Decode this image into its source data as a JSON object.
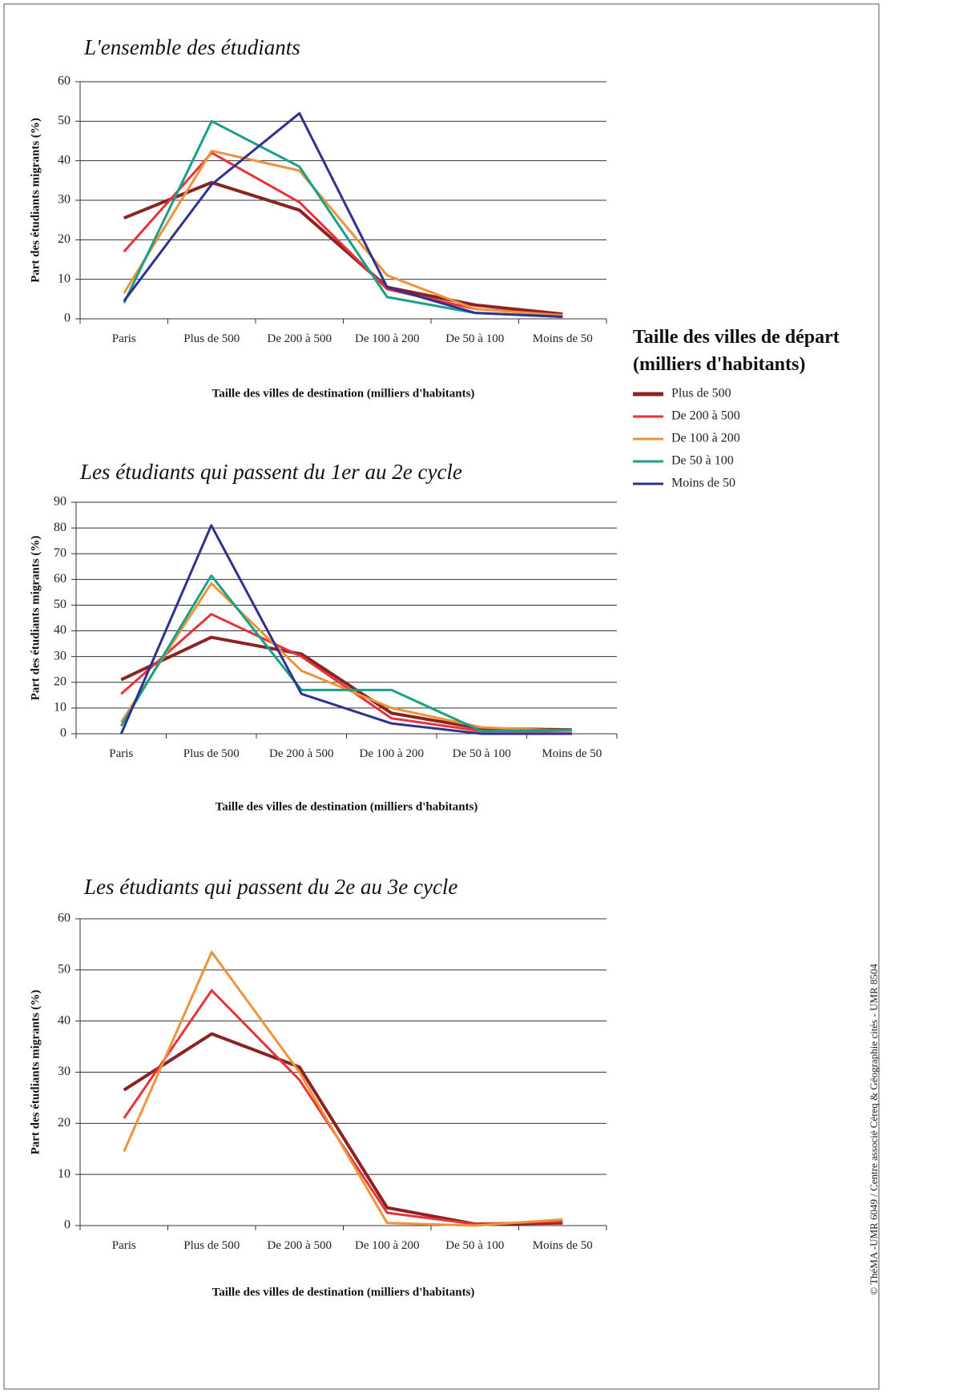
{
  "chart_data": [
    {
      "type": "line",
      "title": "L'ensemble des étudiants",
      "x_label": "Taille des villes de destination (milliers d'habitants)",
      "y_label": "Part des étudiants migrants (%)",
      "legend_title": "Taille des villes de départ (milliers d'habitants)",
      "categories": [
        "Paris",
        "Plus de 500",
        "De 200 à 500",
        "De 100 à 200",
        "De 50 à 100",
        "Moins de 50"
      ],
      "ylim": [
        0,
        60
      ],
      "yticks": [
        0,
        10,
        20,
        30,
        40,
        50,
        60
      ],
      "grid": true,
      "series": [
        {
          "name": "Plus de 500",
          "color": "#8b2323",
          "values": [
            25.5,
            34.5,
            27.5,
            8,
            3.5,
            1.2
          ]
        },
        {
          "name": "De 200 à 500",
          "color": "#e8333a",
          "values": [
            17,
            42,
            29.5,
            7.5,
            2.5,
            1
          ]
        },
        {
          "name": "De 100 à 200",
          "color": "#f0923a",
          "values": [
            6.5,
            42.5,
            37.5,
            11,
            2.5,
            0.8
          ]
        },
        {
          "name": "De 50 à 100",
          "color": "#1aa088",
          "values": [
            4,
            50,
            38.5,
            5.5,
            1.5,
            0.5
          ]
        },
        {
          "name": "Moins de 50",
          "color": "#2e3192",
          "values": [
            4.5,
            34,
            52,
            8,
            1.5,
            0.5
          ]
        }
      ]
    },
    {
      "type": "line",
      "title": "Les étudiants qui passent du 1er au 2e cycle",
      "x_label": "Taille des villes de destination (milliers d'habitants)",
      "y_label": "Part des étudiants migrants (%)",
      "categories": [
        "Paris",
        "Plus de 500",
        "De 200 à 500",
        "De 100 à 200",
        "De 50 à 100",
        "Moins de 50"
      ],
      "ylim": [
        0,
        90
      ],
      "yticks": [
        0,
        10,
        20,
        30,
        40,
        50,
        60,
        70,
        80,
        90
      ],
      "grid": true,
      "series": [
        {
          "name": "Plus de 500",
          "color": "#8b2323",
          "values": [
            21,
            37.5,
            31,
            8,
            2,
            1.5
          ]
        },
        {
          "name": "De 200 à 500",
          "color": "#e8333a",
          "values": [
            15.5,
            46.5,
            30,
            6,
            1,
            1
          ]
        },
        {
          "name": "De 100 à 200",
          "color": "#f0923a",
          "values": [
            4.5,
            58.5,
            24.5,
            10,
            2.5,
            1
          ]
        },
        {
          "name": "De 50 à 100",
          "color": "#1aa088",
          "values": [
            3,
            61.5,
            17,
            17,
            1,
            1.5
          ]
        },
        {
          "name": "Moins de 50",
          "color": "#2e3192",
          "values": [
            0,
            81,
            15.5,
            4,
            0,
            0
          ]
        }
      ]
    },
    {
      "type": "line",
      "title": "Les étudiants qui passent du 2e au 3e cycle",
      "x_label": "Taille des villes de destination (milliers d'habitants)",
      "y_label": "Part des étudiants migrants (%)",
      "categories": [
        "Paris",
        "Plus de 500",
        "De 200 à 500",
        "De 100 à 200",
        "De 50 à 100",
        "Moins de 50"
      ],
      "ylim": [
        0,
        60
      ],
      "yticks": [
        0,
        10,
        20,
        30,
        40,
        50,
        60
      ],
      "grid": true,
      "series": [
        {
          "name": "Plus de 500",
          "color": "#8b2323",
          "values": [
            26.5,
            37.5,
            31,
            3.5,
            0.3,
            0.5
          ]
        },
        {
          "name": "De 200 à 500",
          "color": "#e8333a",
          "values": [
            21,
            46,
            28.5,
            2.5,
            0.3,
            0.8
          ]
        },
        {
          "name": "De 100 à 200",
          "color": "#f0923a",
          "values": [
            14.5,
            53.5,
            30,
            0.5,
            0,
            1.2
          ]
        }
      ]
    }
  ],
  "credit": "© ThéMA -UMR 6049 / Centre associé Céreq & Géographie cités - UMR 8504"
}
